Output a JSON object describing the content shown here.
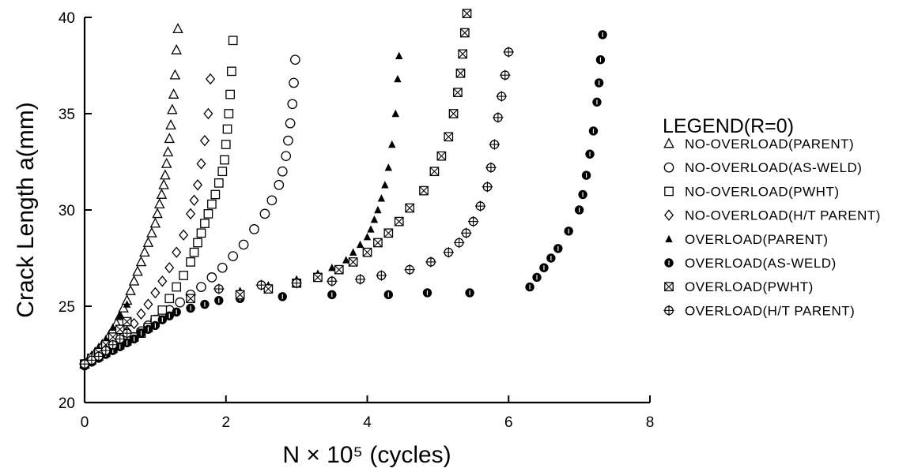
{
  "chart_data": {
    "type": "scatter",
    "title": "",
    "xlabel": "N × 10⁵ (cycles)",
    "ylabel": "Crack Length a(mm)",
    "xlim": [
      0,
      8
    ],
    "ylim": [
      20,
      40
    ],
    "xticks": [
      "0",
      "2",
      "4",
      "6",
      "8"
    ],
    "yticks": [
      "20",
      "25",
      "30",
      "35",
      "40"
    ],
    "grid": false,
    "legend_title": "LEGEND(R=0)",
    "legend_position": "right",
    "series": [
      {
        "name": "NO-OVERLOAD(PARENT)",
        "marker": "triangle-open",
        "x": [
          0,
          0.05,
          0.1,
          0.15,
          0.2,
          0.25,
          0.3,
          0.35,
          0.4,
          0.45,
          0.5,
          0.55,
          0.6,
          0.65,
          0.7,
          0.75,
          0.8,
          0.85,
          0.9,
          0.95,
          1.0,
          1.03,
          1.06,
          1.09,
          1.12,
          1.14,
          1.16,
          1.18,
          1.2,
          1.22,
          1.24,
          1.26,
          1.28,
          1.3,
          1.32
        ],
        "y": [
          22.0,
          22.2,
          22.4,
          22.6,
          22.8,
          23.0,
          23.2,
          23.5,
          23.8,
          24.1,
          24.5,
          24.9,
          25.3,
          25.8,
          26.3,
          26.8,
          27.3,
          27.8,
          28.3,
          28.8,
          29.3,
          29.8,
          30.3,
          30.8,
          31.3,
          31.8,
          32.4,
          33.0,
          33.7,
          34.4,
          35.2,
          36.0,
          37.0,
          38.3,
          39.4
        ]
      },
      {
        "name": "NO-OVERLOAD(AS-WELD)",
        "marker": "circle-open",
        "x": [
          0,
          0.1,
          0.2,
          0.3,
          0.4,
          0.5,
          0.6,
          0.7,
          0.8,
          0.9,
          1.0,
          1.1,
          1.2,
          1.35,
          1.5,
          1.65,
          1.8,
          1.95,
          2.1,
          2.25,
          2.4,
          2.55,
          2.65,
          2.75,
          2.8,
          2.85,
          2.88,
          2.91,
          2.94,
          2.96,
          2.98
        ],
        "y": [
          22.0,
          22.2,
          22.4,
          22.6,
          22.8,
          23.0,
          23.2,
          23.4,
          23.7,
          24.0,
          24.3,
          24.5,
          24.8,
          25.2,
          25.6,
          26.0,
          26.5,
          27.0,
          27.6,
          28.2,
          29.0,
          29.8,
          30.5,
          31.3,
          32.0,
          32.8,
          33.6,
          34.5,
          35.5,
          36.6,
          37.8
        ]
      },
      {
        "name": "NO-OVERLOAD(PWHT)",
        "marker": "square-open",
        "x": [
          0,
          0.1,
          0.2,
          0.3,
          0.4,
          0.5,
          0.6,
          0.7,
          0.8,
          0.9,
          1.0,
          1.1,
          1.2,
          1.3,
          1.4,
          1.5,
          1.55,
          1.6,
          1.65,
          1.7,
          1.75,
          1.8,
          1.85,
          1.9,
          1.95,
          1.98,
          2.0,
          2.02,
          2.04,
          2.06,
          2.08,
          2.1
        ],
        "y": [
          22.0,
          22.2,
          22.4,
          22.6,
          22.8,
          23.0,
          23.2,
          23.4,
          23.6,
          23.9,
          24.3,
          24.8,
          25.4,
          26.0,
          26.6,
          27.3,
          27.8,
          28.3,
          28.8,
          29.3,
          29.8,
          30.3,
          30.8,
          31.4,
          32.0,
          32.6,
          33.4,
          34.2,
          35.0,
          36.0,
          37.2,
          38.8
        ]
      },
      {
        "name": "NO-OVERLOAD(H/T PARENT)",
        "marker": "diamond-open",
        "x": [
          0,
          0.1,
          0.2,
          0.3,
          0.4,
          0.5,
          0.6,
          0.7,
          0.8,
          0.9,
          1.0,
          1.1,
          1.2,
          1.3,
          1.4,
          1.5,
          1.55,
          1.6,
          1.65,
          1.7,
          1.75,
          1.78
        ],
        "y": [
          22.0,
          22.2,
          22.4,
          22.7,
          23.0,
          23.3,
          23.7,
          24.1,
          24.6,
          25.1,
          25.7,
          26.3,
          27.0,
          27.8,
          28.7,
          29.8,
          30.5,
          31.3,
          32.4,
          33.6,
          35.0,
          36.8
        ]
      },
      {
        "name": "OVERLOAD(PARENT)",
        "marker": "triangle-filled",
        "x": [
          0,
          0.1,
          0.2,
          0.3,
          0.4,
          0.5,
          0.6,
          2.2,
          2.6,
          3.0,
          3.3,
          3.5,
          3.7,
          3.8,
          3.9,
          4.0,
          4.05,
          4.1,
          4.15,
          4.2,
          4.25,
          4.3,
          4.35,
          4.4,
          4.43,
          4.45
        ],
        "y": [
          22.0,
          22.4,
          22.8,
          23.3,
          23.9,
          24.5,
          25.1,
          25.8,
          26.1,
          26.4,
          26.7,
          27.0,
          27.4,
          27.8,
          28.2,
          28.6,
          29.0,
          29.5,
          30.0,
          30.6,
          31.3,
          32.2,
          33.4,
          35.0,
          36.8,
          38.0
        ]
      },
      {
        "name": "OVERLOAD(AS-WELD)",
        "marker": "circle-filled",
        "x": [
          0,
          0.1,
          0.2,
          0.3,
          0.4,
          0.5,
          0.6,
          0.7,
          0.8,
          0.9,
          1.0,
          1.1,
          1.2,
          1.3,
          1.5,
          1.7,
          1.9,
          2.2,
          2.8,
          3.5,
          4.3,
          4.85,
          5.45,
          6.3,
          6.4,
          6.5,
          6.6,
          6.7,
          6.85,
          7.0,
          7.05,
          7.1,
          7.15,
          7.2,
          7.25,
          7.28,
          7.3,
          7.33
        ],
        "y": [
          21.9,
          22.1,
          22.3,
          22.5,
          22.7,
          22.9,
          23.1,
          23.3,
          23.6,
          23.8,
          24.0,
          24.3,
          24.5,
          24.7,
          24.9,
          25.1,
          25.3,
          25.4,
          25.5,
          25.6,
          25.6,
          25.7,
          25.7,
          26.0,
          26.5,
          27.0,
          27.5,
          28.0,
          28.9,
          30.0,
          30.8,
          31.8,
          32.9,
          34.1,
          35.6,
          36.6,
          37.8,
          39.1
        ]
      },
      {
        "name": "OVERLOAD(PWHT)",
        "marker": "square-x",
        "x": [
          0,
          0.1,
          0.2,
          0.3,
          0.4,
          0.5,
          0.6,
          1.5,
          2.2,
          2.6,
          3.0,
          3.3,
          3.6,
          3.8,
          4.0,
          4.15,
          4.3,
          4.45,
          4.6,
          4.8,
          4.95,
          5.05,
          5.15,
          5.22,
          5.28,
          5.32,
          5.35,
          5.38,
          5.41
        ],
        "y": [
          22.0,
          22.3,
          22.6,
          23.0,
          23.4,
          23.8,
          24.2,
          25.4,
          25.6,
          25.9,
          26.2,
          26.5,
          26.9,
          27.3,
          27.8,
          28.3,
          28.8,
          29.4,
          30.1,
          31.0,
          32.0,
          32.8,
          33.8,
          35.0,
          36.1,
          37.1,
          38.1,
          39.2,
          40.2
        ]
      },
      {
        "name": "OVERLOAD(H/T PARENT)",
        "marker": "circle-cross",
        "x": [
          0,
          0.1,
          0.2,
          0.3,
          0.4,
          0.5,
          0.6,
          1.9,
          2.5,
          3.0,
          3.5,
          3.9,
          4.2,
          4.6,
          4.9,
          5.15,
          5.3,
          5.4,
          5.5,
          5.6,
          5.7,
          5.75,
          5.8,
          5.85,
          5.9,
          5.95,
          6.0
        ],
        "y": [
          22.0,
          22.2,
          22.4,
          22.7,
          23.0,
          23.3,
          23.6,
          25.9,
          26.1,
          26.2,
          26.3,
          26.4,
          26.6,
          26.9,
          27.3,
          27.8,
          28.3,
          28.8,
          29.4,
          30.2,
          31.2,
          32.2,
          33.4,
          34.8,
          35.9,
          37.0,
          38.2
        ]
      }
    ]
  }
}
